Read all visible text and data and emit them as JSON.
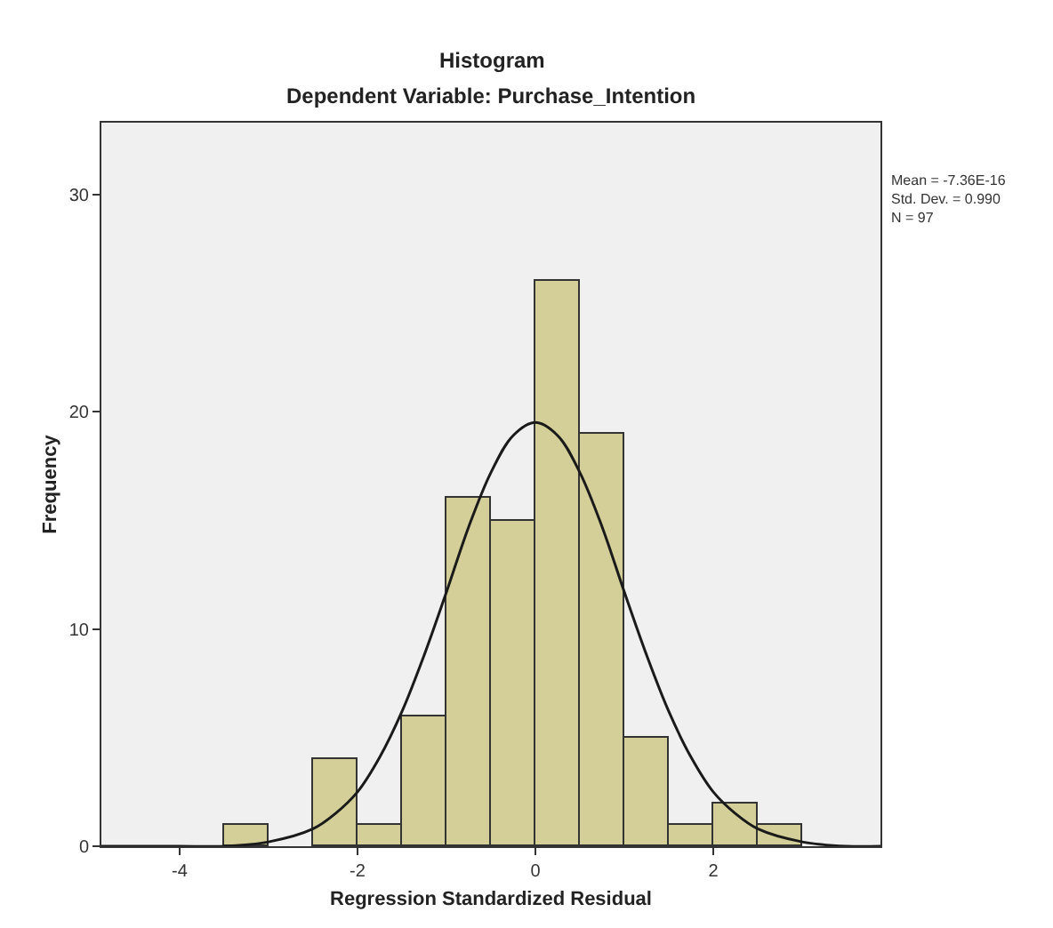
{
  "chart_data": {
    "type": "histogram",
    "title": "Histogram",
    "subtitle": "Dependent Variable: Purchase_Intention",
    "xlabel": "Regression Standardized Residual",
    "ylabel": "Frequency",
    "annotations": [
      "Mean = -7.36E-16\nStd. Dev. = 0.990\nN = 97"
    ],
    "bins": [
      -3.5,
      -3.0,
      -2.5,
      -2.0,
      -1.5,
      -1.0,
      -0.5,
      0.0,
      0.5,
      1.0,
      1.5,
      2.0,
      2.5,
      3.0
    ],
    "series": [
      {
        "color": "#d4cf98",
        "values": [
          1,
          0,
          4,
          1,
          6,
          16,
          15,
          26,
          19,
          5,
          1,
          2,
          1
        ]
      },
      {
        "type": "line",
        "color": "#1a1a1a",
        "x": [
          -4.88,
          -4.5,
          -4,
          -3.5,
          -3,
          -2.5,
          -2.25,
          -2,
          -1.75,
          -1.5,
          -1.25,
          -1,
          -0.75,
          -0.5,
          -0.25,
          0,
          0.25,
          0.5,
          0.75,
          1,
          1.25,
          1.5,
          1.75,
          2,
          2.25,
          2.5,
          3,
          3.5,
          3.88
        ],
        "values": [
          0,
          0,
          0,
          0,
          0.2,
          0.8,
          1.5,
          2.5,
          4.1,
          6.2,
          8.8,
          11.7,
          14.7,
          17.2,
          18.9,
          19.5,
          18.9,
          17.2,
          14.7,
          11.7,
          8.8,
          6.2,
          4.1,
          2.5,
          1.5,
          0.8,
          0.2,
          0,
          0
        ]
      }
    ],
    "xlim": [
      -4.88,
      3.88
    ],
    "xticks": [
      -4,
      -2,
      0,
      2
    ],
    "ylim": [
      0,
      33.3
    ],
    "yticks": [
      0,
      10,
      20,
      30
    ],
    "grid": false,
    "marker": "none",
    "line_style": "solid"
  }
}
